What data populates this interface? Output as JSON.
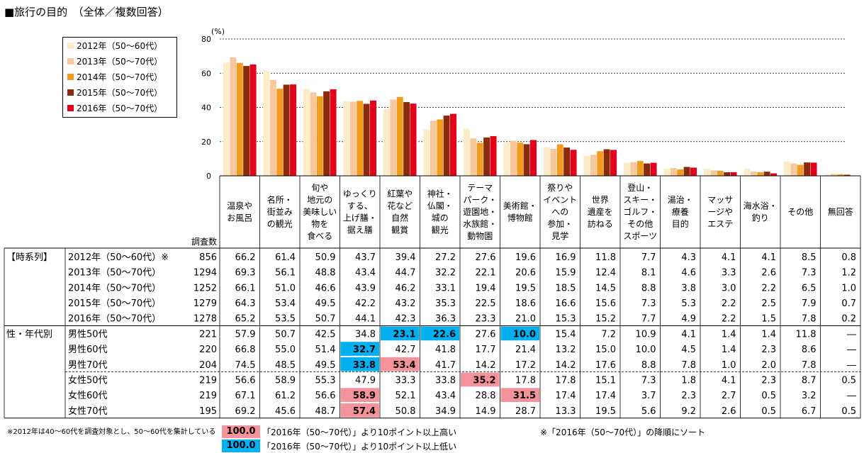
{
  "title": "■旅行の目的　（全体／複数回答）",
  "unit_label": "(%)",
  "chart_data": {
    "type": "bar",
    "ylim": [
      0,
      80
    ],
    "yticks": [
      0,
      20,
      40,
      60,
      80
    ],
    "categories": [
      "温泉や\nお風呂",
      "名所・\n街並み\nの観光",
      "旬や\n地元の\n美味しい\n物を\n食べる",
      "ゆっくり\nする、\n上げ膳・\n据え膳",
      "紅葉や\n花など\n自然\n観賞",
      "神社・\n仏閣・\n城の\n観光",
      "テーマ\nパーク・\n遊園地・\n水族館・\n動物園",
      "美術館・\n博物館",
      "祭りや\nイベント\nへの\n参加・\n見学",
      "世界\n遺産を\n訪ねる",
      "登山・\nスキー・\nゴルフ・\nその他\nスポーツ",
      "湯治・\n療養\n目的",
      "マッサ\nージや\nエステ",
      "海水浴・\n釣り",
      "その他",
      "無回答"
    ],
    "series": [
      {
        "name": "2012年（50～60代）",
        "color": "#fcedc9",
        "values": [
          66.2,
          61.4,
          50.9,
          43.7,
          39.4,
          27.2,
          27.6,
          19.6,
          16.9,
          11.8,
          7.7,
          4.3,
          4.1,
          4.1,
          8.5,
          0.8
        ]
      },
      {
        "name": "2013年（50～70代）",
        "color": "#f9c79c",
        "values": [
          69.3,
          56.1,
          48.8,
          43.4,
          44.7,
          32.2,
          22.1,
          20.6,
          15.9,
          12.4,
          8.1,
          4.6,
          3.3,
          2.6,
          7.3,
          1.2
        ]
      },
      {
        "name": "2014年（50～70代）",
        "color": "#f29c1d",
        "values": [
          66.1,
          51.0,
          46.6,
          43.9,
          46.2,
          33.1,
          19.4,
          19.5,
          18.5,
          14.5,
          8.8,
          3.8,
          3.0,
          2.2,
          6.5,
          1.0
        ]
      },
      {
        "name": "2015年（50～70代）",
        "color": "#8b2b0d",
        "values": [
          64.3,
          53.4,
          49.5,
          42.2,
          43.2,
          35.3,
          22.5,
          18.6,
          16.6,
          15.6,
          7.3,
          5.3,
          2.2,
          2.5,
          7.9,
          0.7
        ]
      },
      {
        "name": "2016年（50～70代）",
        "color": "#e3001b",
        "values": [
          65.2,
          53.5,
          50.7,
          44.1,
          42.3,
          36.3,
          23.3,
          21.0,
          15.3,
          15.2,
          7.7,
          4.9,
          2.2,
          1.5,
          7.8,
          0.2
        ]
      }
    ]
  },
  "table": {
    "n_header": "調査数",
    "rows": [
      {
        "group": "【時系列】",
        "label": "2012年（50～60代）※",
        "n": "856",
        "values": [
          "66.2",
          "61.4",
          "50.9",
          "43.7",
          "39.4",
          "27.2",
          "27.6",
          "19.6",
          "16.9",
          "11.8",
          "7.7",
          "4.3",
          "4.1",
          "4.1",
          "8.5",
          "0.8"
        ],
        "hi": []
      },
      {
        "group": "",
        "label": "2013年（50～70代）",
        "n": "1294",
        "values": [
          "69.3",
          "56.1",
          "48.8",
          "43.4",
          "44.7",
          "32.2",
          "22.1",
          "20.6",
          "15.9",
          "12.4",
          "8.1",
          "4.6",
          "3.3",
          "2.6",
          "7.3",
          "1.2"
        ],
        "hi": []
      },
      {
        "group": "",
        "label": "2014年（50～70代）",
        "n": "1252",
        "values": [
          "66.1",
          "51.0",
          "46.6",
          "43.9",
          "46.2",
          "33.1",
          "19.4",
          "19.5",
          "18.5",
          "14.5",
          "8.8",
          "3.8",
          "3.0",
          "2.2",
          "6.5",
          "1.0"
        ],
        "hi": []
      },
      {
        "group": "",
        "label": "2015年（50～70代）",
        "n": "1279",
        "values": [
          "64.3",
          "53.4",
          "49.5",
          "42.2",
          "43.2",
          "35.3",
          "22.5",
          "18.6",
          "16.6",
          "15.6",
          "7.3",
          "5.3",
          "2.2",
          "2.5",
          "7.9",
          "0.7"
        ],
        "hi": []
      },
      {
        "group": "",
        "label": "2016年（50～70代）",
        "n": "1278",
        "values": [
          "65.2",
          "53.5",
          "50.7",
          "44.1",
          "42.3",
          "36.3",
          "23.3",
          "21.0",
          "15.3",
          "15.2",
          "7.7",
          "4.9",
          "2.2",
          "1.5",
          "7.8",
          "0.2"
        ],
        "hi": []
      },
      {
        "group": "性・年代別",
        "label": "男性50代",
        "n": "221",
        "values": [
          "57.9",
          "50.7",
          "42.5",
          "34.8",
          "23.1",
          "22.6",
          "27.6",
          "10.0",
          "15.4",
          "7.2",
          "10.9",
          "4.1",
          "1.4",
          "1.4",
          "11.8",
          "―"
        ],
        "hi": [
          [
            4,
            "low"
          ],
          [
            5,
            "low"
          ],
          [
            7,
            "low"
          ]
        ]
      },
      {
        "group": "",
        "label": "男性60代",
        "n": "220",
        "values": [
          "66.8",
          "55.0",
          "51.4",
          "32.7",
          "42.7",
          "41.8",
          "17.7",
          "21.4",
          "13.2",
          "15.0",
          "10.0",
          "4.5",
          "1.4",
          "2.3",
          "8.6",
          "―"
        ],
        "hi": [
          [
            3,
            "low"
          ]
        ]
      },
      {
        "group": "",
        "label": "男性70代",
        "n": "204",
        "values": [
          "74.5",
          "48.5",
          "49.5",
          "33.8",
          "53.4",
          "41.7",
          "14.2",
          "17.2",
          "14.2",
          "17.6",
          "8.8",
          "7.8",
          "1.0",
          "2.0",
          "7.8",
          "―"
        ],
        "hi": [
          [
            3,
            "low"
          ],
          [
            4,
            "high"
          ]
        ]
      },
      {
        "group": "",
        "label": "女性50代",
        "n": "219",
        "values": [
          "56.6",
          "58.9",
          "55.3",
          "47.9",
          "33.3",
          "33.8",
          "35.2",
          "17.8",
          "17.8",
          "15.1",
          "7.3",
          "1.8",
          "4.1",
          "2.3",
          "8.7",
          "0.5"
        ],
        "hi": [
          [
            6,
            "high"
          ]
        ]
      },
      {
        "group": "",
        "label": "女性60代",
        "n": "219",
        "values": [
          "67.1",
          "61.2",
          "56.6",
          "58.9",
          "52.1",
          "43.4",
          "28.8",
          "31.5",
          "17.4",
          "17.4",
          "3.7",
          "2.3",
          "2.7",
          "0.5",
          "3.2",
          "―"
        ],
        "hi": [
          [
            3,
            "high"
          ],
          [
            7,
            "high"
          ]
        ]
      },
      {
        "group": "",
        "label": "女性70代",
        "n": "195",
        "values": [
          "69.2",
          "45.6",
          "48.7",
          "57.4",
          "50.8",
          "34.9",
          "14.9",
          "28.7",
          "13.3",
          "19.5",
          "5.6",
          "9.2",
          "2.6",
          "0.5",
          "6.7",
          "0.5"
        ],
        "hi": [
          [
            3,
            "high"
          ]
        ]
      }
    ]
  },
  "colors": {
    "high": "#f5939a",
    "low": "#00b0f0"
  },
  "footnotes": {
    "note1": "※2012年は40～60代を調査対象とし、50～60代を集計している",
    "key_value": "100.0",
    "key_high": "「2016年（50～70代）」より10ポイント以上高い",
    "key_low": "「2016年（50～70代）」より10ポイント以上低い",
    "sort_note": "※「2016年（50～70代）」の降順にソート"
  }
}
